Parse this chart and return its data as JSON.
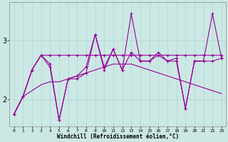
{
  "xlabel": "Windchill (Refroidissement éolien,°C)",
  "background_color": "#cce8e4",
  "grid_color": "#aad8d4",
  "line_color": "#990099",
  "x": [
    0,
    1,
    2,
    3,
    4,
    5,
    6,
    7,
    8,
    9,
    10,
    11,
    12,
    13,
    14,
    15,
    16,
    17,
    18,
    19,
    20,
    21,
    22,
    23
  ],
  "line_jagged1": [
    1.75,
    2.05,
    2.5,
    2.75,
    2.55,
    1.65,
    2.35,
    2.35,
    2.45,
    3.1,
    2.5,
    2.85,
    2.5,
    3.45,
    2.65,
    2.65,
    2.8,
    2.65,
    2.65,
    1.85,
    2.65,
    2.65,
    3.45,
    2.7
  ],
  "line_jagged2": [
    1.75,
    2.05,
    2.5,
    2.75,
    2.6,
    1.65,
    2.35,
    2.4,
    2.55,
    3.1,
    2.55,
    2.85,
    2.5,
    2.8,
    2.65,
    2.65,
    2.75,
    2.65,
    2.7,
    1.85,
    2.65,
    2.65,
    2.65,
    2.7
  ],
  "line_flat": [
    1.75,
    2.05,
    2.5,
    2.75,
    2.75,
    2.75,
    2.75,
    2.75,
    2.75,
    2.75,
    2.75,
    2.75,
    2.75,
    2.75,
    2.75,
    2.75,
    2.75,
    2.75,
    2.75,
    2.75,
    2.75,
    2.75,
    2.75,
    2.75
  ],
  "line_smooth": [
    1.75,
    2.05,
    2.15,
    2.25,
    2.3,
    2.3,
    2.35,
    2.4,
    2.45,
    2.5,
    2.55,
    2.6,
    2.6,
    2.6,
    2.55,
    2.5,
    2.45,
    2.4,
    2.35,
    2.3,
    2.25,
    2.2,
    2.15,
    2.1
  ],
  "ylim": [
    1.55,
    3.65
  ],
  "yticks": [
    2.0,
    3.0
  ],
  "xlim": [
    -0.5,
    23.5
  ]
}
